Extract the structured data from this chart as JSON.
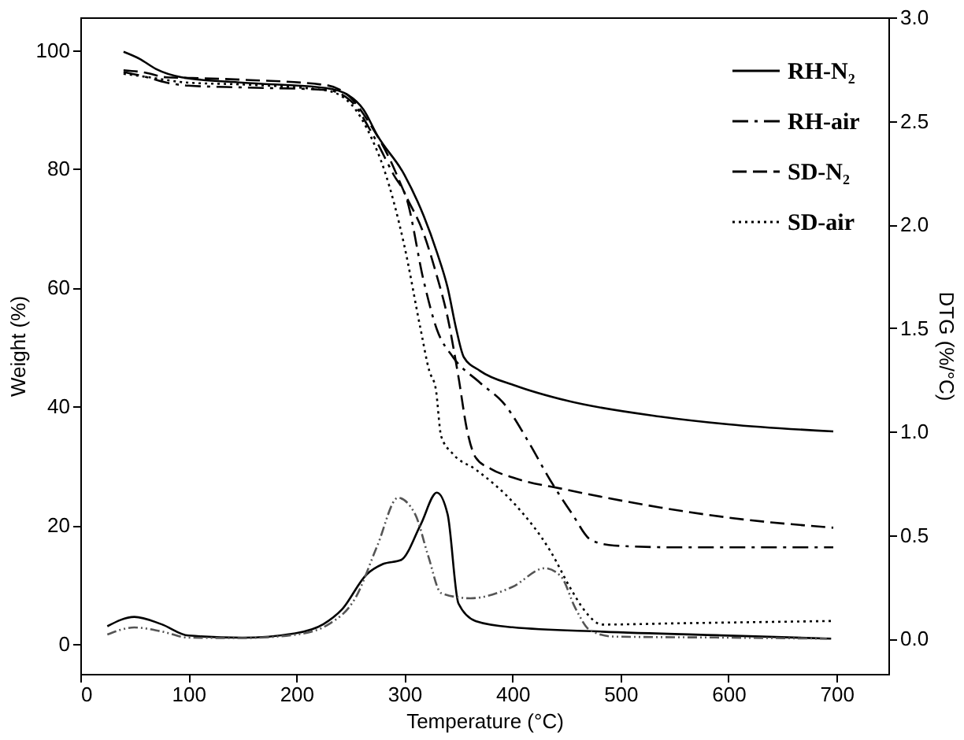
{
  "chart_data": {
    "type": "line",
    "xlabel": "Temperature (°C)",
    "ylabel": "Weight (%)",
    "y2label": "DTG (%/°C)",
    "xlim": [
      0,
      748
    ],
    "xticks": [
      0,
      100,
      200,
      300,
      400,
      500,
      600,
      700
    ],
    "ylim": [
      -5,
      105.5
    ],
    "yticks": [
      0,
      20,
      40,
      60,
      80,
      100
    ],
    "y2lim": [
      -0.17,
      3.0
    ],
    "y2ticks": [
      {
        "value": 0,
        "label": "0.0"
      },
      {
        "value": 0.5,
        "label": "0.5"
      },
      {
        "value": 1,
        "label": "1.0"
      },
      {
        "value": 1.5,
        "label": "1.5"
      },
      {
        "value": 2,
        "label": "2.0"
      },
      {
        "value": 2.5,
        "label": "2.5"
      },
      {
        "value": 3,
        "label": "3.0"
      }
    ],
    "legend": "top right",
    "series": [
      {
        "name": "RH-N₂",
        "color": "#000000",
        "line_style": "solid",
        "x": [
          40,
          55,
          70,
          94,
          150,
          227,
          248,
          262,
          275,
          300,
          318,
          330,
          340,
          348,
          355,
          370,
          403,
          450,
          537,
          600,
          697
        ],
        "values": [
          99.7,
          98.5,
          96.8,
          95.4,
          94.5,
          93.6,
          92.4,
          90,
          85.6,
          79,
          72,
          66,
          60,
          53,
          48.3,
          46,
          43.5,
          41,
          38.3,
          37,
          35.8
        ]
      },
      {
        "name": "RH-air",
        "color": "#000000",
        "line_style": "dashdot",
        "x": [
          40,
          60,
          80,
          100,
          150,
          227,
          250,
          270,
          290,
          302,
          318,
          330,
          345,
          370,
          393,
          415,
          435,
          455,
          473,
          494,
          550,
          697
        ],
        "values": [
          96.3,
          95.5,
          94.5,
          94,
          93.7,
          93.3,
          91.5,
          86,
          79,
          75,
          61,
          53,
          48.3,
          44,
          40.3,
          34,
          27.6,
          22,
          17.5,
          16.6,
          16.3,
          16.3
        ]
      },
      {
        "name": "SD-N₂",
        "color": "#000000",
        "line_style": "dashed",
        "x": [
          40,
          60,
          80,
          100,
          150,
          227,
          250,
          270,
          286,
          300,
          318,
          330,
          340,
          350,
          358,
          366,
          380,
          403,
          450,
          537,
          600,
          697
        ],
        "values": [
          96.6,
          96.2,
          95.4,
          95.3,
          95,
          94.1,
          92,
          87,
          81.8,
          76,
          69,
          62,
          55,
          45,
          36,
          31.4,
          29.5,
          27.9,
          26,
          23,
          21.3,
          19.6
        ]
      },
      {
        "name": "SD-air",
        "color": "#000000",
        "line_style": "dotted",
        "x": [
          40,
          60,
          100,
          150,
          227,
          250,
          270,
          281,
          300,
          315,
          323,
          329,
          334,
          345,
          366,
          403,
          435,
          455,
          467,
          483,
          550,
          697
        ],
        "values": [
          96,
          95.5,
          94.5,
          94.2,
          93.2,
          91,
          85,
          80,
          67,
          53,
          46,
          43,
          35,
          32,
          29.4,
          23.4,
          15.7,
          9,
          5.6,
          3.3,
          3.5,
          3.9
        ]
      },
      {
        "color": "#000000",
        "line_style": "solid",
        "axis": "y2",
        "x": [
          25,
          50,
          75,
          100,
          150,
          199,
          225,
          242,
          265,
          280,
          297,
          315,
          330,
          340,
          350,
          366,
          400,
          483,
          600,
          695
        ],
        "values": [
          0.06,
          0.105,
          0.07,
          0.015,
          0.005,
          0.026,
          0.07,
          0.14,
          0.31,
          0.36,
          0.38,
          0.55,
          0.705,
          0.6,
          0.17,
          0.085,
          0.055,
          0.034,
          0.015,
          0.0
        ]
      },
      {
        "color": "#555555",
        "line_style": "dashdotdot",
        "axis": "y2",
        "x": [
          25,
          50,
          75,
          100,
          150,
          200,
          230,
          255,
          275,
          294,
          310,
          322,
          334,
          361,
          400,
          430,
          445,
          458,
          472,
          494,
          600,
          691
        ],
        "values": [
          0.02,
          0.054,
          0.035,
          0.005,
          0.003,
          0.02,
          0.07,
          0.2,
          0.45,
          0.68,
          0.6,
          0.4,
          0.22,
          0.195,
          0.25,
          0.34,
          0.3,
          0.15,
          0.04,
          0.01,
          0.005,
          0.0
        ]
      }
    ]
  }
}
